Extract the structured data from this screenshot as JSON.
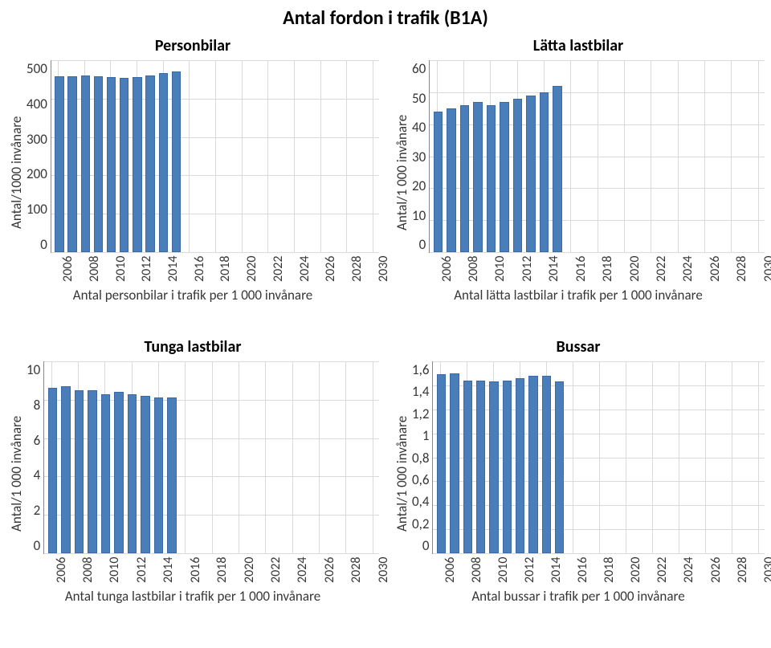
{
  "page_title": "Antal fordon i trafik (B1A)",
  "bar_color": "#4a7ebb",
  "bar_border": "#3a6aa5",
  "grid_color": "#d9d9d9",
  "background_color": "#ffffff",
  "text_color": "#373737",
  "x_labels": [
    "2006",
    "2008",
    "2010",
    "2012",
    "2014",
    "2016",
    "2018",
    "2020",
    "2022",
    "2024",
    "2026",
    "2028",
    "2030"
  ],
  "n_categories": 25,
  "panels": {
    "personbilar": {
      "title": "Personbilar",
      "ylabel": "Antal/1000 invånare",
      "ylim": [
        0,
        500
      ],
      "ytick_step": 100,
      "yticks": [
        "500",
        "400",
        "300",
        "200",
        "100",
        "0"
      ],
      "x_caption": "Antal personbilar i trafik per 1 000 invånare",
      "values": [
        458,
        458,
        460,
        458,
        456,
        454,
        456,
        460,
        466,
        470
      ]
    },
    "latta": {
      "title": "Lätta lastbilar",
      "ylabel": "Antal/1 000 invånare",
      "ylim": [
        0,
        60
      ],
      "ytick_step": 10,
      "yticks": [
        "60",
        "50",
        "40",
        "30",
        "20",
        "10",
        "0"
      ],
      "x_caption": "Antal lätta lastbilar i trafik per 1 000 invånare",
      "values": [
        44,
        45,
        46,
        47,
        46,
        47,
        48,
        49,
        50,
        52
      ]
    },
    "tunga": {
      "title": "Tunga lastbilar",
      "ylabel": "Antal/1 000 invånare",
      "ylim": [
        0,
        10
      ],
      "ytick_step": 2,
      "yticks": [
        "10",
        "8",
        "6",
        "4",
        "2",
        "0"
      ],
      "x_caption": "Antal tunga lastbilar i trafik per 1 000 invånare",
      "values": [
        8.6,
        8.7,
        8.5,
        8.5,
        8.3,
        8.4,
        8.3,
        8.2,
        8.1,
        8.1
      ]
    },
    "bussar": {
      "title": "Bussar",
      "ylabel": "Antal/1 000 invånare",
      "ylim": [
        0,
        1.6
      ],
      "ytick_step": 0.2,
      "yticks": [
        "1,6",
        "1,4",
        "1,2",
        "1",
        "0,8",
        "0,6",
        "0,4",
        "0,2",
        "0"
      ],
      "x_caption": "Antal bussar i trafik per 1 000 invånare",
      "values": [
        1.49,
        1.5,
        1.44,
        1.44,
        1.43,
        1.44,
        1.46,
        1.48,
        1.48,
        1.43
      ]
    }
  }
}
